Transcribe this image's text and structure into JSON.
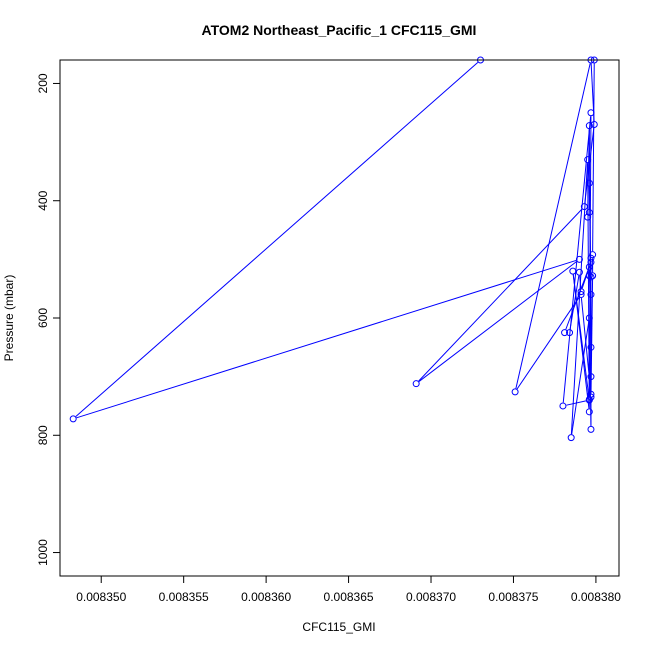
{
  "chart_data": {
    "type": "line",
    "title": "ATOM2 Northeast_Pacific_1 CFC115_GMI",
    "xlabel": "CFC115_GMI",
    "ylabel": "Pressure (mbar)",
    "xlim": [
      0.0083475,
      0.0083814
    ],
    "ylim": [
      1040,
      160
    ],
    "y_reversed": true,
    "x_ticks": [
      0.00835,
      0.008355,
      0.00836,
      0.008365,
      0.00837,
      0.008375,
      0.00838
    ],
    "x_tick_labels": [
      "0.008350",
      "0.008355",
      "0.008360",
      "0.008365",
      "0.008370",
      "0.008375",
      "0.008380"
    ],
    "y_ticks": [
      200,
      400,
      600,
      800,
      1000
    ],
    "y_tick_labels": [
      "200",
      "400",
      "600",
      "800",
      "1000"
    ],
    "line_color": "#0000ff",
    "marker": "open-circle",
    "series": [
      {
        "points": [
          [
            0.008373,
            160
          ],
          [
            0.0083483,
            772
          ],
          [
            0.008379,
            500
          ],
          [
            0.0083691,
            712
          ],
          [
            0.0083793,
            410
          ],
          [
            0.0083799,
            270
          ],
          [
            0.0083797,
            160
          ],
          [
            0.0083751,
            726
          ],
          [
            0.0083791,
            560
          ],
          [
            0.0083797,
            730
          ],
          [
            0.0083797,
            790
          ],
          [
            0.0083796,
            600
          ],
          [
            0.0083785,
            804
          ],
          [
            0.0083795,
            330
          ],
          [
            0.0083796,
            760
          ],
          [
            0.0083786,
            520
          ],
          [
            0.0083796,
            740
          ],
          [
            0.008378,
            750
          ],
          [
            0.0083797,
            250
          ],
          [
            0.0083796,
            739
          ],
          [
            0.0083797,
            700
          ],
          [
            0.0083797,
            498
          ],
          [
            0.0083796,
            528
          ],
          [
            0.0083797,
            560
          ],
          [
            0.0083797,
            650
          ],
          [
            0.0083796,
            513
          ],
          [
            0.0083791,
            555
          ],
          [
            0.008379,
            522
          ],
          [
            0.0083784,
            625
          ],
          [
            0.0083781,
            625
          ],
          [
            0.0083797,
            505
          ],
          [
            0.0083797,
            530
          ],
          [
            0.0083796,
            370
          ],
          [
            0.0083796,
            420
          ],
          [
            0.0083795,
            428
          ],
          [
            0.0083796,
            272
          ],
          [
            0.0083797,
            735
          ],
          [
            0.0083798,
            528
          ],
          [
            0.0083798,
            492
          ],
          [
            0.0083799,
            160
          ]
        ]
      }
    ]
  }
}
